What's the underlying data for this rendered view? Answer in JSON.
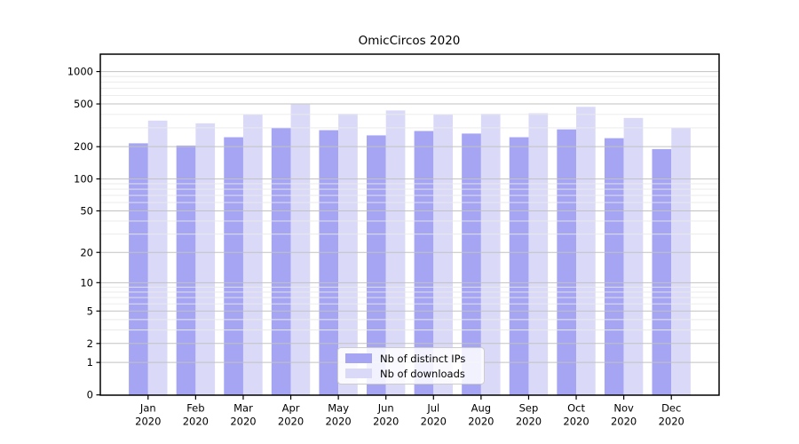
{
  "title": "OmicCircos 2020",
  "colors": {
    "distinct_ips": "#a5a5f3",
    "downloads": "#dadaf8",
    "grid_major": "#c2c2c2",
    "grid_minor": "#e9e9e9",
    "axis": "#000000"
  },
  "legend": {
    "items": [
      {
        "label": "Nb of distinct IPs",
        "series": "distinct_ips"
      },
      {
        "label": "Nb of downloads",
        "series": "downloads"
      }
    ]
  },
  "chart_data": {
    "type": "bar",
    "title": "OmicCircos 2020",
    "categories": [
      "Jan",
      "Feb",
      "Mar",
      "Apr",
      "May",
      "Jun",
      "Jul",
      "Aug",
      "Sep",
      "Oct",
      "Nov",
      "Dec"
    ],
    "category_year": "2020",
    "series": [
      {
        "name": "Nb of distinct IPs",
        "values": [
          215,
          205,
          245,
          300,
          285,
          255,
          280,
          265,
          245,
          290,
          240,
          190
        ]
      },
      {
        "name": "Nb of downloads",
        "values": [
          350,
          330,
          400,
          495,
          405,
          435,
          400,
          405,
          410,
          470,
          370,
          300
        ]
      }
    ],
    "y_scale": "log1p",
    "y_ticks": [
      0,
      1,
      2,
      5,
      10,
      20,
      50,
      100,
      200,
      500,
      1000
    ],
    "ylim": [
      0,
      1450
    ],
    "xlabel": "",
    "ylabel": "",
    "grid": true,
    "grid_above_bars": true,
    "legend_position": "lower center"
  }
}
